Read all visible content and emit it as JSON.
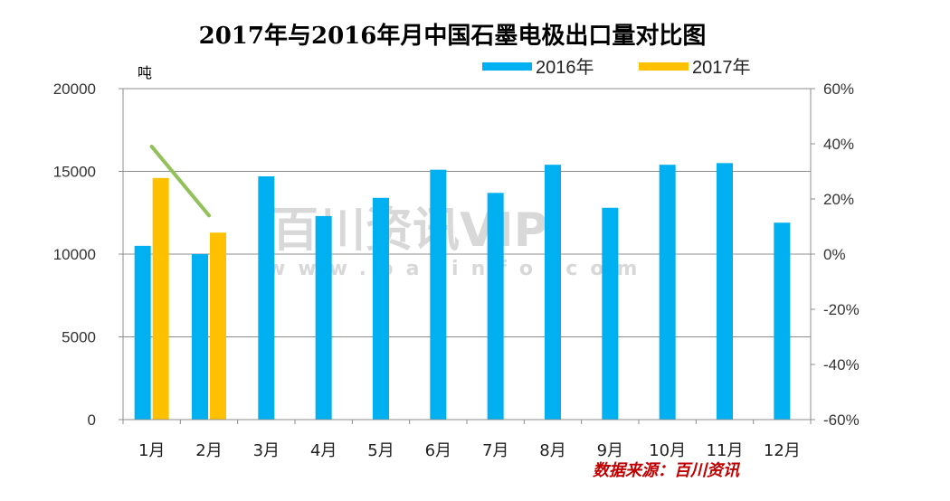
{
  "chart_data": {
    "type": "bar",
    "title": "2017年与2016年月中国石墨电极出口量对比图",
    "y_unit_label": "吨",
    "categories": [
      "1月",
      "2月",
      "3月",
      "4月",
      "5月",
      "6月",
      "7月",
      "8月",
      "9月",
      "10月",
      "11月",
      "12月"
    ],
    "ylim": [
      0,
      20000
    ],
    "yticks": [
      0,
      5000,
      10000,
      15000,
      20000
    ],
    "y2lim": [
      -60,
      60
    ],
    "y2ticks": [
      "-60%",
      "-40%",
      "-20%",
      "0%",
      "20%",
      "40%",
      "60%"
    ],
    "series": [
      {
        "name": "2016年",
        "color": "#00b0f0",
        "values": [
          10500,
          10000,
          14700,
          12300,
          13400,
          15100,
          13700,
          15400,
          12800,
          15400,
          15500,
          11900
        ]
      },
      {
        "name": "2017年",
        "color": "#ffc000",
        "values": [
          14600,
          11300,
          null,
          null,
          null,
          null,
          null,
          null,
          null,
          null,
          null,
          null
        ]
      }
    ],
    "line_series": {
      "color": "#92c05a",
      "axis": "right",
      "values_pct": [
        39,
        14
      ]
    },
    "grid": true,
    "legend": "top"
  },
  "watermark": {
    "main": "百川资讯VIP",
    "url": "www.baiinfo.com"
  },
  "source_note": "数据来源：百川资讯"
}
